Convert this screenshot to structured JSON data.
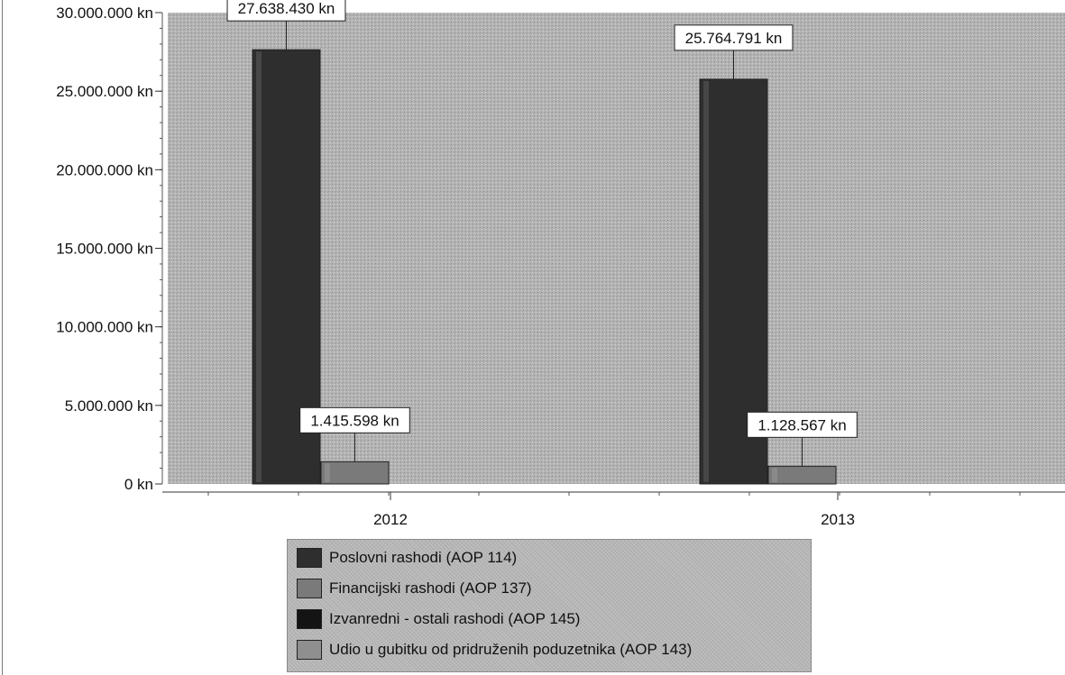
{
  "chart_data": {
    "type": "bar",
    "categories": [
      "2012",
      "2013"
    ],
    "series": [
      {
        "name": "Poslovni rashodi (AOP 114)",
        "values": [
          27638430,
          25764791
        ],
        "color": "#2e2e2e"
      },
      {
        "name": "Financijski rashodi (AOP 137)",
        "values": [
          1415598,
          1128567
        ],
        "color": "#7a7a7a"
      },
      {
        "name": "Izvanredni - ostali rashodi (AOP 145)",
        "values": [
          0,
          0
        ],
        "color": "#141414"
      },
      {
        "name": "Udio u gubitku od pridruženih poduzetnika (AOP 143)",
        "values": [
          0,
          0
        ],
        "color": "#8f8f8f"
      }
    ],
    "data_labels": [
      {
        "series": 0,
        "category": 0,
        "text": "27.638.430 kn"
      },
      {
        "series": 1,
        "category": 0,
        "text": "1.415.598 kn"
      },
      {
        "series": 0,
        "category": 1,
        "text": "25.764.791 kn"
      },
      {
        "series": 1,
        "category": 1,
        "text": "1.128.567 kn"
      }
    ],
    "yticks": [
      {
        "value": 0,
        "label": "0 kn"
      },
      {
        "value": 5000000,
        "label": "5.000.000 kn"
      },
      {
        "value": 10000000,
        "label": "10.000.000 kn"
      },
      {
        "value": 15000000,
        "label": "15.000.000 kn"
      },
      {
        "value": 20000000,
        "label": "20.000.000 kn"
      },
      {
        "value": 25000000,
        "label": "25.000.000 kn"
      },
      {
        "value": 30000000,
        "label": "30.000.000 kn"
      }
    ],
    "ylim": [
      0,
      30000000
    ],
    "title": "",
    "xlabel": "",
    "ylabel": "",
    "grid": false,
    "legend_position": "bottom",
    "background": "#b4b4b4"
  }
}
